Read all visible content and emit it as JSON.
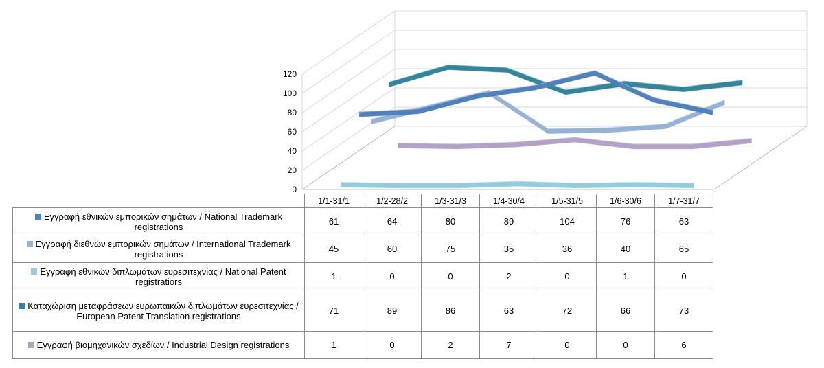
{
  "chart_data": {
    "type": "line",
    "subtype": "3d-line-with-data-table",
    "categories": [
      "1/1-31/1",
      "1/2-28/2",
      "1/3-31/3",
      "1/4-30/4",
      "1/5-31/5",
      "1/6-30/6",
      "1/7-31/7"
    ],
    "ylim": [
      0,
      120
    ],
    "yticks": [
      "0",
      "20",
      "40",
      "60",
      "80",
      "100",
      "120"
    ],
    "grid": true,
    "series": [
      {
        "name": "Εγγραφή εθνικών εμπορικών σημάτων / National Trademark registrations",
        "color": "#4f81bd",
        "values": [
          61,
          64,
          80,
          89,
          104,
          76,
          63
        ]
      },
      {
        "name": "Εγγραφή διεθνών εμπορικών σημάτων / International Trademark registrations",
        "color": "#95b3d7",
        "values": [
          45,
          60,
          75,
          35,
          36,
          40,
          65
        ]
      },
      {
        "name": "Εγγραφή εθνικών διπλωμάτων ευρεσιτεχνίας / National Patent registratiors",
        "color": "#93cddd",
        "values": [
          1,
          0,
          0,
          2,
          0,
          1,
          0
        ]
      },
      {
        "name": "Καταχώριση μεταφράσεων ευρωπαϊκών διπλωμάτων ευρεσιτεχνίας / European Patent Translation registrations",
        "color": "#31859c",
        "values": [
          71,
          89,
          86,
          63,
          72,
          66,
          73
        ]
      },
      {
        "name": "Εγγραφή βιομηχανικών σχεδίων / Industrial Design registrations",
        "color": "#b3a2c7",
        "values": [
          1,
          0,
          2,
          7,
          0,
          0,
          6
        ]
      }
    ]
  }
}
